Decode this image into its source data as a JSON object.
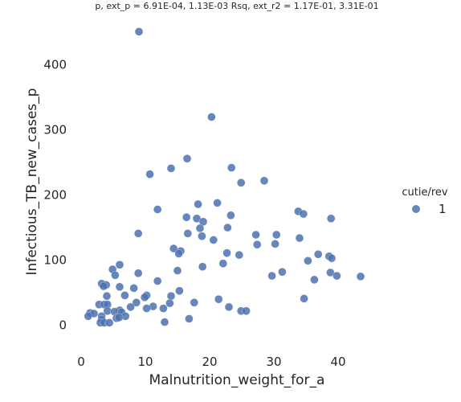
{
  "chart_data": {
    "type": "scatter",
    "title": "p, ext_p = 6.91E-04, 1.13E-03 Rsq, ext_r2 = 1.17E-01, 3.31E-01",
    "xlabel": "Malnutrition_weight_for_a",
    "ylabel": "Infectious_TB_new_cases_p",
    "xlim": [
      -1,
      49
    ],
    "ylim": [
      -40,
      470
    ],
    "xticks": [
      0,
      10,
      20,
      30,
      40
    ],
    "yticks": [
      0,
      100,
      200,
      300,
      400
    ],
    "grid": false,
    "legend": {
      "title": "cutie/rev",
      "placement": "right",
      "entries": [
        {
          "label": "1",
          "color": "#4c72b0"
        }
      ]
    },
    "series": [
      {
        "name": "1",
        "color": "#4c72b0",
        "points": [
          [
            9.0,
            451
          ],
          [
            20.3,
            320
          ],
          [
            16.5,
            256
          ],
          [
            23.4,
            242
          ],
          [
            14.0,
            241
          ],
          [
            10.7,
            232
          ],
          [
            24.9,
            219
          ],
          [
            28.5,
            222
          ],
          [
            18.2,
            186
          ],
          [
            21.2,
            188
          ],
          [
            11.9,
            178
          ],
          [
            33.8,
            175
          ],
          [
            34.6,
            171
          ],
          [
            23.3,
            169
          ],
          [
            16.4,
            166
          ],
          [
            18.0,
            164
          ],
          [
            38.9,
            164
          ],
          [
            19.0,
            159
          ],
          [
            18.5,
            149
          ],
          [
            22.8,
            150
          ],
          [
            8.9,
            141
          ],
          [
            16.6,
            141
          ],
          [
            18.8,
            137
          ],
          [
            27.2,
            139
          ],
          [
            30.4,
            139
          ],
          [
            20.6,
            131
          ],
          [
            34.0,
            134
          ],
          [
            27.4,
            124
          ],
          [
            30.2,
            125
          ],
          [
            14.4,
            118
          ],
          [
            15.5,
            114
          ],
          [
            15.2,
            110
          ],
          [
            22.7,
            111
          ],
          [
            24.6,
            108
          ],
          [
            36.9,
            109
          ],
          [
            38.6,
            106
          ],
          [
            39.0,
            103
          ],
          [
            35.3,
            99
          ],
          [
            6.0,
            93
          ],
          [
            22.1,
            95
          ],
          [
            18.9,
            90
          ],
          [
            4.9,
            86
          ],
          [
            15.0,
            84
          ],
          [
            31.3,
            82
          ],
          [
            38.8,
            81
          ],
          [
            8.9,
            80
          ],
          [
            5.3,
            77
          ],
          [
            29.7,
            76
          ],
          [
            39.8,
            76
          ],
          [
            43.5,
            75
          ],
          [
            36.3,
            70
          ],
          [
            11.9,
            68
          ],
          [
            3.2,
            64
          ],
          [
            3.9,
            62
          ],
          [
            3.5,
            60
          ],
          [
            6.0,
            59
          ],
          [
            8.2,
            57
          ],
          [
            15.3,
            53
          ],
          [
            6.8,
            46
          ],
          [
            10.2,
            46
          ],
          [
            4.0,
            45
          ],
          [
            14.0,
            45
          ],
          [
            9.9,
            43
          ],
          [
            34.7,
            41
          ],
          [
            21.4,
            40
          ],
          [
            8.6,
            35
          ],
          [
            17.6,
            35
          ],
          [
            2.8,
            32
          ],
          [
            3.6,
            32
          ],
          [
            4.1,
            32
          ],
          [
            13.8,
            34
          ],
          [
            11.2,
            29
          ],
          [
            7.7,
            28
          ],
          [
            12.8,
            26
          ],
          [
            10.2,
            26
          ],
          [
            23.0,
            28
          ],
          [
            4.1,
            22
          ],
          [
            6.0,
            23
          ],
          [
            5.2,
            21
          ],
          [
            6.3,
            20
          ],
          [
            1.4,
            19
          ],
          [
            2.0,
            18
          ],
          [
            24.9,
            22
          ],
          [
            25.7,
            22
          ],
          [
            1.1,
            14
          ],
          [
            3.2,
            14
          ],
          [
            6.9,
            14
          ],
          [
            5.5,
            11
          ],
          [
            5.9,
            12
          ],
          [
            3.2,
            9
          ],
          [
            16.8,
            10
          ],
          [
            3.0,
            4
          ],
          [
            3.6,
            4
          ],
          [
            4.4,
            4
          ],
          [
            13.0,
            5
          ]
        ]
      }
    ]
  }
}
